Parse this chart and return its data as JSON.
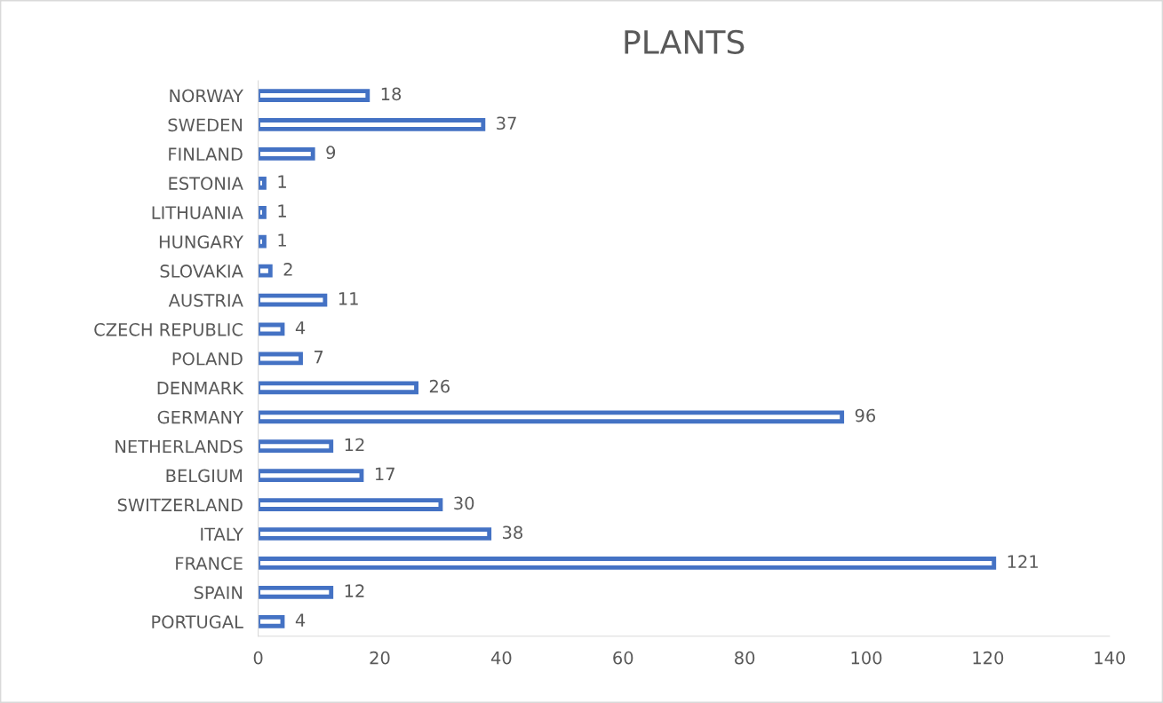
{
  "chart_data": {
    "type": "bar",
    "orientation": "horizontal",
    "title": "PLANTS",
    "categories": [
      "NORWAY",
      "SWEDEN",
      "FINLAND",
      "ESTONIA",
      "LITHUANIA",
      "HUNGARY",
      "SLOVAKIA",
      "AUSTRIA",
      "CZECH REPUBLIC",
      "POLAND",
      "DENMARK",
      "GERMANY",
      "NETHERLANDS",
      "BELGIUM",
      "SWITZERLAND",
      "ITALY",
      "FRANCE",
      "SPAIN",
      "PORTUGAL"
    ],
    "values": [
      18,
      37,
      9,
      1,
      1,
      1,
      2,
      11,
      4,
      7,
      26,
      96,
      12,
      17,
      30,
      38,
      121,
      12,
      4
    ],
    "color": "#4472c4",
    "xlim": [
      0,
      140
    ],
    "xticks": [
      0,
      20,
      40,
      60,
      80,
      100,
      120,
      140
    ],
    "grid": false,
    "data_labels": true
  }
}
